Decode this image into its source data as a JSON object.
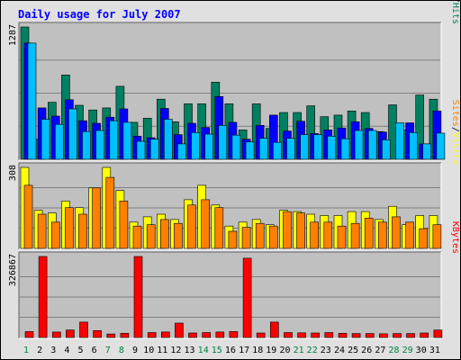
{
  "chart_data": [
    {
      "type": "bar",
      "title": "Daily usage for July 2007",
      "panel": "hits-files-pages",
      "categories": [
        "1",
        "2",
        "3",
        "4",
        "5",
        "6",
        "7",
        "8",
        "9",
        "10",
        "11",
        "12",
        "13",
        "14",
        "15",
        "16",
        "17",
        "18",
        "19",
        "20",
        "21",
        "22",
        "23",
        "24",
        "25",
        "26",
        "27",
        "28",
        "29",
        "30",
        "31"
      ],
      "weekend_days": [
        "1",
        "7",
        "8",
        "14",
        "15",
        "21",
        "22",
        "28",
        "29"
      ],
      "y_max_label": "1287",
      "ylim": [
        0,
        1287
      ],
      "grid": true,
      "legend": {
        "position": "right",
        "items": [
          {
            "label": "Pages",
            "color": "#00c0ff"
          },
          {
            "label": "/",
            "color": "#000000"
          },
          {
            "label": "Files",
            "color": "#0000ff"
          },
          {
            "label": "/",
            "color": "#000000"
          },
          {
            "label": "Hits",
            "color": "#008060"
          }
        ]
      },
      "series": [
        {
          "name": "Hits",
          "color": "#008060",
          "values": [
            1287,
            195,
            555,
            820,
            525,
            480,
            500,
            710,
            360,
            400,
            585,
            365,
            540,
            540,
            750,
            540,
            285,
            540,
            300,
            455,
            455,
            520,
            415,
            430,
            470,
            455,
            270,
            530,
            285,
            625,
            585
          ]
        },
        {
          "name": "Files",
          "color": "#0000ff",
          "values": [
            1130,
            500,
            420,
            580,
            375,
            350,
            410,
            490,
            225,
            210,
            495,
            240,
            350,
            310,
            610,
            360,
            195,
            330,
            430,
            275,
            370,
            250,
            285,
            305,
            365,
            300,
            265,
            0,
            355,
            150,
            470
          ]
        },
        {
          "name": "Pages",
          "color": "#00c0ff",
          "values": [
            1130,
            390,
            340,
            490,
            270,
            280,
            375,
            360,
            175,
            195,
            390,
            150,
            260,
            245,
            330,
            235,
            170,
            205,
            165,
            205,
            240,
            240,
            225,
            200,
            280,
            280,
            190,
            355,
            260,
            150,
            255
          ]
        }
      ]
    },
    {
      "type": "bar",
      "panel": "visits-sites",
      "categories": [
        "1",
        "2",
        "3",
        "4",
        "5",
        "6",
        "7",
        "8",
        "9",
        "10",
        "11",
        "12",
        "13",
        "14",
        "15",
        "16",
        "17",
        "18",
        "19",
        "20",
        "21",
        "22",
        "23",
        "24",
        "25",
        "26",
        "27",
        "28",
        "29",
        "30",
        "31"
      ],
      "y_max_label": "308",
      "ylim": [
        0,
        308
      ],
      "grid": true,
      "legend": {
        "position": "right",
        "items": [
          {
            "label": "Sites",
            "color": "#ff8000"
          },
          {
            "label": "/",
            "color": "#000000"
          },
          {
            "label": "Visits",
            "color": "#ffff00"
          }
        ]
      },
      "series": [
        {
          "name": "Visits",
          "color": "#ffff00",
          "values": [
            308,
            145,
            135,
            180,
            155,
            230,
            308,
            220,
            100,
            120,
            130,
            110,
            185,
            240,
            165,
            85,
            100,
            110,
            90,
            145,
            140,
            130,
            125,
            125,
            140,
            140,
            110,
            160,
            90,
            125,
            125
          ]
        },
        {
          "name": "Sites",
          "color": "#ff8000",
          "values": [
            240,
            130,
            100,
            155,
            130,
            230,
            270,
            180,
            85,
            90,
            110,
            95,
            165,
            185,
            155,
            65,
            80,
            95,
            85,
            140,
            135,
            100,
            100,
            85,
            95,
            115,
            100,
            120,
            100,
            75,
            90
          ]
        }
      ]
    },
    {
      "type": "bar",
      "panel": "kbytes",
      "categories": [
        "1",
        "2",
        "3",
        "4",
        "5",
        "6",
        "7",
        "8",
        "9",
        "10",
        "11",
        "12",
        "13",
        "14",
        "15",
        "16",
        "17",
        "18",
        "19",
        "20",
        "21",
        "22",
        "23",
        "24",
        "25",
        "26",
        "27",
        "28",
        "29",
        "30",
        "31"
      ],
      "y_max_label": "326867",
      "ylim": [
        0,
        326867
      ],
      "grid": true,
      "legend": {
        "position": "right",
        "items": [
          {
            "label": "KBytes",
            "color": "#ff0000"
          }
        ]
      },
      "series": [
        {
          "name": "KBytes",
          "color": "#ff0000",
          "values": [
            24000,
            326867,
            22000,
            30000,
            62000,
            28000,
            14000,
            17000,
            326867,
            20000,
            22000,
            58000,
            18000,
            20000,
            22000,
            24000,
            320000,
            18000,
            62000,
            20000,
            19000,
            18000,
            20000,
            17000,
            16000,
            16000,
            15000,
            16000,
            16000,
            18000,
            30000
          ]
        }
      ]
    }
  ]
}
